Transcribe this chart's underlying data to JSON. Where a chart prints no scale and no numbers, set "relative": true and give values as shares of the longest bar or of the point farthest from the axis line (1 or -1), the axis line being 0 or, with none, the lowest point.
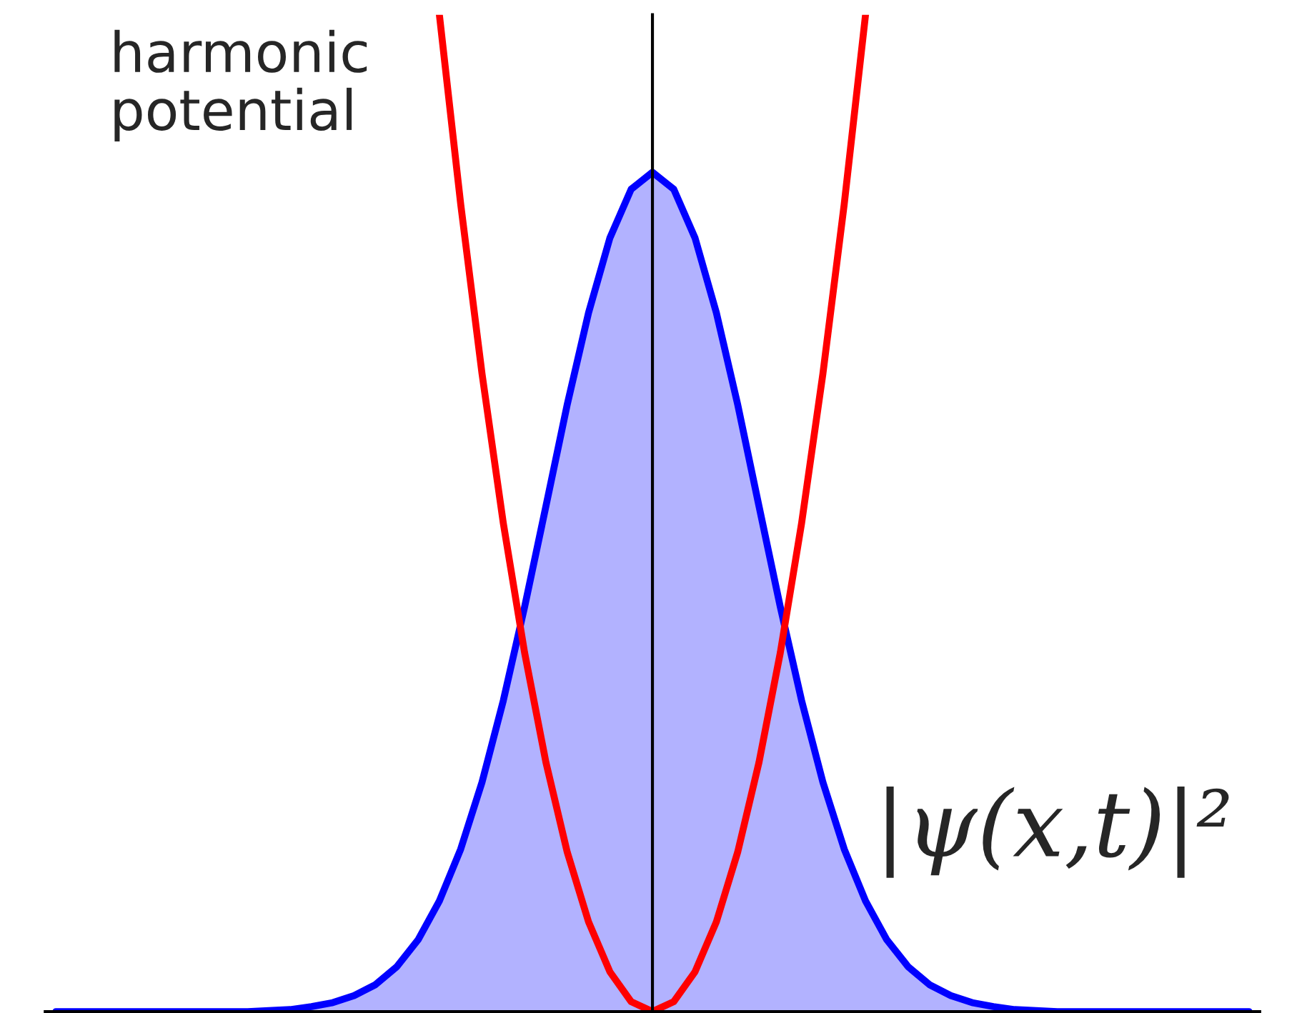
{
  "chart_data": {
    "type": "line",
    "relative": true,
    "categories": [
      null,
      null,
      null,
      null,
      null,
      null,
      null,
      null,
      null,
      null,
      null,
      null,
      null,
      null,
      null,
      null,
      null,
      null,
      null,
      null,
      null,
      null,
      null,
      null,
      null,
      null,
      null,
      null,
      null,
      null,
      null,
      null,
      null,
      null,
      null,
      null,
      null,
      null,
      null,
      null,
      null,
      null,
      null,
      null,
      null,
      null,
      null,
      null,
      null,
      null,
      null,
      null,
      null,
      null,
      null,
      null,
      null
    ],
    "series": [
      {
        "name": "|ψ(x,t)|²",
        "type": "area",
        "color": "#0000ff",
        "values": [
          0,
          0,
          0,
          0,
          0,
          0,
          0,
          0,
          0,
          0,
          0.001,
          0.002,
          0.005,
          0.009,
          0.016,
          0.027,
          0.045,
          0.072,
          0.111,
          0.163,
          0.23,
          0.312,
          0.406,
          0.507,
          0.609,
          0.701,
          0.776,
          0.825,
          0.842,
          0.825,
          0.776,
          0.701,
          0.609,
          0.507,
          0.406,
          0.312,
          0.23,
          0.163,
          0.111,
          0.072,
          0.045,
          0.027,
          0.016,
          0.009,
          0.005,
          0.002,
          0.001,
          0,
          0,
          0,
          0,
          0,
          0,
          0,
          0,
          0,
          0
        ]
      },
      {
        "name": "harmonic\npotential",
        "color": "#ff0000",
        "values": [
          null,
          null,
          null,
          null,
          null,
          null,
          null,
          null,
          null,
          null,
          null,
          null,
          null,
          null,
          null,
          null,
          null,
          null,
          1.0,
          0.81,
          0.64,
          0.49,
          0.36,
          0.25,
          0.16,
          0.09,
          0.04,
          0.01,
          0,
          0.01,
          0.04,
          0.09,
          0.16,
          0.25,
          0.36,
          0.49,
          0.64,
          0.81,
          1.0,
          null,
          null,
          null,
          null,
          null,
          null,
          null,
          null,
          null,
          null,
          null,
          null,
          null,
          null,
          null,
          null,
          null,
          null
        ]
      }
    ],
    "legend": false
  }
}
